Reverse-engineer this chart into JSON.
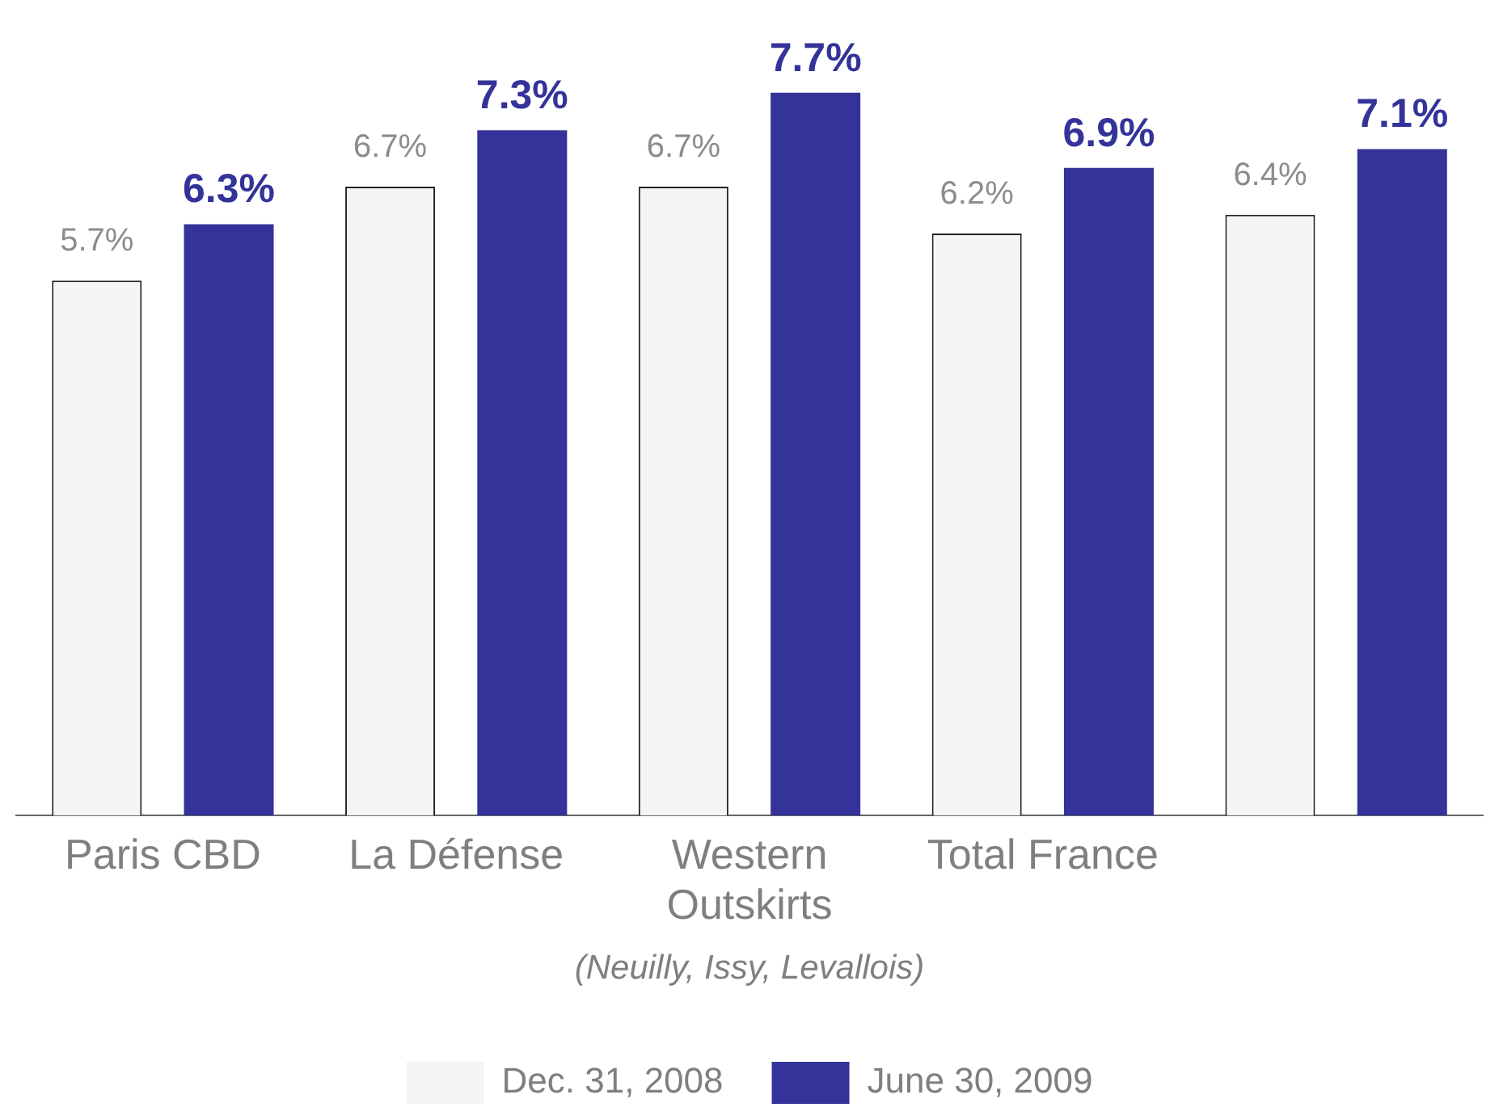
{
  "chart_data": {
    "type": "bar",
    "categories": [
      "Paris CBD",
      "La Défense",
      "Western Outskirts",
      "Total France",
      null
    ],
    "series": [
      {
        "name": "Dec. 31, 2008",
        "color": "#f5f5f5",
        "values": [
          5.7,
          6.7,
          6.7,
          6.2,
          6.4
        ],
        "value_labels": [
          "5.7%",
          "6.7%",
          "6.7%",
          "6.2%",
          "6.4%"
        ]
      },
      {
        "name": "June 30, 2009",
        "color": "#333399",
        "values": [
          6.3,
          7.3,
          7.7,
          6.9,
          7.1
        ],
        "value_labels": [
          "6.3%",
          "7.3%",
          "7.7%",
          "6.9%",
          "7.1%"
        ]
      }
    ],
    "legend": "bottom",
    "grid": false,
    "annotations": [
      "(Neuilly, Issy, Levallois)"
    ]
  }
}
